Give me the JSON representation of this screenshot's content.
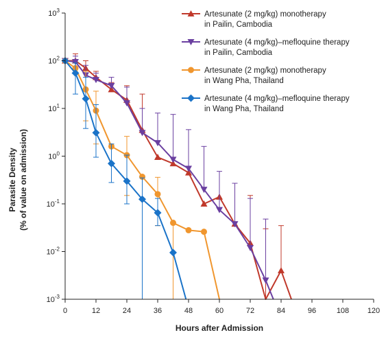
{
  "chart_data": {
    "type": "line",
    "xlabel": "Hours after Admission",
    "ylabel_lines": [
      "Parasite Density",
      "(% of value on admission)"
    ],
    "x_ticks": [
      0,
      12,
      24,
      36,
      48,
      60,
      72,
      84,
      96,
      108,
      120
    ],
    "x_tick_labels": [
      "0",
      "12",
      "24",
      "36",
      "48",
      "60",
      "72",
      "84",
      "96",
      "108",
      "120"
    ],
    "y_scale": "log",
    "y_ticks": [
      0.001,
      0.01,
      0.1,
      1,
      10,
      100,
      1000
    ],
    "y_tick_labels": [
      {
        "base": "10",
        "exp": "-3"
      },
      {
        "base": "10",
        "exp": "-2"
      },
      {
        "base": "10",
        "exp": "-1"
      },
      {
        "base": "10",
        "exp": "0"
      },
      {
        "base": "10",
        "exp": "1"
      },
      {
        "base": "10",
        "exp": "2"
      },
      {
        "base": "10",
        "exp": "3"
      }
    ],
    "xlim": [
      0,
      120
    ],
    "ylim": [
      0.001,
      1000
    ],
    "grid": false,
    "legend_position": "top-right",
    "series": [
      {
        "name": "Artesunate (2 mg/kg) monotherapy in Pailin, Cambodia",
        "legend_lines": [
          "Artesunate (2 mg/kg) monotherapy",
          "in Pailin, Cambodia"
        ],
        "color": "#c0392b",
        "marker": "triangle-up",
        "points": [
          {
            "x": 0,
            "y": 100
          },
          {
            "x": 4,
            "y": 100,
            "err_up": 140
          },
          {
            "x": 8,
            "y": 70,
            "err_up": 100
          },
          {
            "x": 12,
            "y": 45,
            "err_up": 60
          },
          {
            "x": 18,
            "y": 25,
            "err_up": 35
          },
          {
            "x": 24,
            "y": 15,
            "err_up": 30
          },
          {
            "x": 30,
            "y": 3.5,
            "err_up": 20
          },
          {
            "x": 36,
            "y": 0.95
          },
          {
            "x": 42,
            "y": 0.7
          },
          {
            "x": 48,
            "y": 0.45
          },
          {
            "x": 54,
            "y": 0.1
          },
          {
            "x": 60,
            "y": 0.14
          },
          {
            "x": 66,
            "y": 0.038
          },
          {
            "x": 72,
            "y": 0.015,
            "err_up": 0.15
          },
          {
            "x": 78,
            "y": 0.001,
            "err_up": 0.03
          },
          {
            "x": 84,
            "y": 0.004,
            "err_up": 0.035
          },
          {
            "x": 88,
            "y": 0.001
          }
        ]
      },
      {
        "name": "Artesunate (4 mg/kg)–mefloquine therapy in Pailin, Cambodia",
        "legend_lines": [
          "Artesunate (4 mg/kg)–mefloquine therapy",
          "in Pailin, Cambodia"
        ],
        "color": "#6a3fa0",
        "marker": "triangle-down",
        "points": [
          {
            "x": 0,
            "y": 100
          },
          {
            "x": 4,
            "y": 95,
            "err_up": 125
          },
          {
            "x": 8,
            "y": 50,
            "err_up": 80
          },
          {
            "x": 12,
            "y": 40,
            "err_up": 55
          },
          {
            "x": 18,
            "y": 30,
            "err_up": 45
          },
          {
            "x": 24,
            "y": 13,
            "err_up": 28
          },
          {
            "x": 30,
            "y": 3.1,
            "err_up": 10
          },
          {
            "x": 36,
            "y": 1.9,
            "err_up": 8
          },
          {
            "x": 42,
            "y": 0.85,
            "err_up": 7.5
          },
          {
            "x": 48,
            "y": 0.55,
            "err_up": 3.6
          },
          {
            "x": 54,
            "y": 0.2,
            "err_up": 1.6
          },
          {
            "x": 60,
            "y": 0.075,
            "err_up": 0.48
          },
          {
            "x": 66,
            "y": 0.038,
            "err_up": 0.27
          },
          {
            "x": 72,
            "y": 0.012,
            "err_up": 0.13
          },
          {
            "x": 78,
            "y": 0.0025,
            "err_up": 0.048
          },
          {
            "x": 81,
            "y": 0.001
          }
        ]
      },
      {
        "name": "Artesunate (2 mg/kg) monotherapy in Wang Pha, Thailand",
        "legend_lines": [
          "Artesunate (2 mg/kg) monotherapy",
          "in Wang Pha, Thailand"
        ],
        "color": "#f0962e",
        "marker": "circle",
        "points": [
          {
            "x": 0,
            "y": 100
          },
          {
            "x": 4,
            "y": 70
          },
          {
            "x": 8,
            "y": 25,
            "err_up": 60,
            "err_down": 5.5
          },
          {
            "x": 12,
            "y": 9,
            "err_up": 23,
            "err_down": 1.8
          },
          {
            "x": 18,
            "y": 1.6
          },
          {
            "x": 24,
            "y": 1.05,
            "err_up": 2.6,
            "err_down": 0.15
          },
          {
            "x": 30,
            "y": 0.37
          },
          {
            "x": 36,
            "y": 0.16,
            "err_up": 0.36,
            "err_down": 0.035
          },
          {
            "x": 42,
            "y": 0.04,
            "err_down": 0.001
          },
          {
            "x": 48,
            "y": 0.028
          },
          {
            "x": 54,
            "y": 0.026
          },
          {
            "x": 60,
            "y": 0.001
          }
        ]
      },
      {
        "name": "Artesunate (4 mg/kg)–mefloquine therapy in Wang Pha, Thailand",
        "legend_lines": [
          "Artesunate (4 mg/kg)–mefloquine therapy",
          "in Wang Pha, Thailand"
        ],
        "color": "#1a73c8",
        "marker": "diamond",
        "points": [
          {
            "x": 0,
            "y": 100
          },
          {
            "x": 4,
            "y": 55,
            "err_up": 90,
            "err_down": 20
          },
          {
            "x": 8,
            "y": 16,
            "err_up": 45,
            "err_down": 3.8
          },
          {
            "x": 12,
            "y": 3.1,
            "err_up": 12,
            "err_down": 0.95
          },
          {
            "x": 18,
            "y": 0.7,
            "err_up": 1.8,
            "err_down": 0.28
          },
          {
            "x": 24,
            "y": 0.3,
            "err_up": 1.05,
            "err_down": 0.1
          },
          {
            "x": 30,
            "y": 0.125,
            "err_up": 0.35,
            "err_down": 0.001
          },
          {
            "x": 36,
            "y": 0.065,
            "err_up": 0.13,
            "err_down": 0.035
          },
          {
            "x": 42,
            "y": 0.0095
          },
          {
            "x": 47,
            "y": 0.001
          }
        ]
      }
    ]
  }
}
